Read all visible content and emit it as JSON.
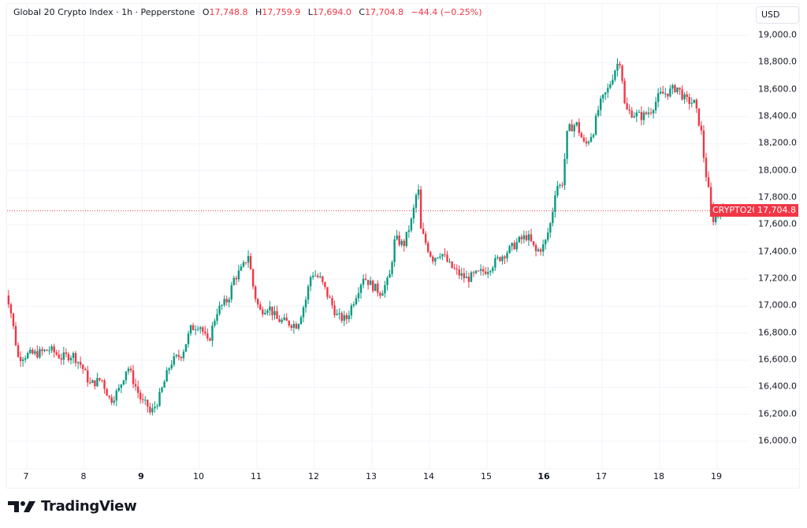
{
  "header": {
    "symbol_title": "Global 20 Crypto Index · 1h · Pepperstone",
    "ohlc": {
      "open_label": "O",
      "open": "17,748.8",
      "high_label": "H",
      "high": "17,759.9",
      "low_label": "L",
      "low": "17,694.0",
      "close_label": "C",
      "close": "17,704.8",
      "change": "−44.4 (−0.25%)"
    }
  },
  "price_axis": {
    "currency": "USD",
    "ticks": [
      "19,000.0",
      "18,800.0",
      "18,600.0",
      "18,400.0",
      "18,200.0",
      "18,000.0",
      "17,800.0",
      "17,600.0",
      "17,400.0",
      "17,200.0",
      "17,000.0",
      "16,800.0",
      "16,600.0",
      "16,400.0",
      "16,200.0",
      "16,000.0"
    ]
  },
  "last_price": {
    "symbol": "CRYPTO20",
    "value": "17,704.8"
  },
  "time_axis": {
    "ticks": [
      {
        "label": "7",
        "bold": false
      },
      {
        "label": "8",
        "bold": false
      },
      {
        "label": "9",
        "bold": true
      },
      {
        "label": "10",
        "bold": false
      },
      {
        "label": "11",
        "bold": false
      },
      {
        "label": "12",
        "bold": false
      },
      {
        "label": "13",
        "bold": false
      },
      {
        "label": "14",
        "bold": false
      },
      {
        "label": "15",
        "bold": false
      },
      {
        "label": "16",
        "bold": true
      },
      {
        "label": "17",
        "bold": false
      },
      {
        "label": "18",
        "bold": false
      },
      {
        "label": "19",
        "bold": false
      }
    ]
  },
  "branding": {
    "logo_text": "TradingView"
  },
  "colors": {
    "up": "#089981",
    "down": "#F23645",
    "grid": "#f0f3fa",
    "last_price_line": "#F23645"
  },
  "chart_data": {
    "type": "candlestick",
    "title": "Global 20 Crypto Index · 1h · Pepperstone",
    "timeframe": "1h",
    "xlabel": "",
    "ylabel": "USD",
    "ylim": [
      15800,
      19100
    ],
    "grid": true,
    "x_ticks": [
      "7",
      "8",
      "9",
      "10",
      "11",
      "12",
      "13",
      "14",
      "15",
      "16",
      "17",
      "18",
      "19"
    ],
    "y_ticks": [
      16000,
      16200,
      16400,
      16600,
      16800,
      17000,
      17200,
      17400,
      17600,
      17800,
      18000,
      18200,
      18400,
      18600,
      18800,
      19000
    ],
    "last_close": 17704.8,
    "last_ohlc": {
      "open": 17748.8,
      "high": 17759.9,
      "low": 17694.0,
      "close": 17704.8,
      "change": -44.4,
      "change_pct": -0.25
    },
    "close_path": [
      [
        6.6,
        17150
      ],
      [
        6.7,
        17020
      ],
      [
        6.8,
        16750
      ],
      [
        6.85,
        16620
      ],
      [
        7.0,
        16640
      ],
      [
        7.2,
        16650
      ],
      [
        7.4,
        16680
      ],
      [
        7.6,
        16620
      ],
      [
        7.8,
        16640
      ],
      [
        7.95,
        16560
      ],
      [
        8.1,
        16420
      ],
      [
        8.3,
        16460
      ],
      [
        8.45,
        16300
      ],
      [
        8.6,
        16380
      ],
      [
        8.75,
        16560
      ],
      [
        8.85,
        16450
      ],
      [
        9.0,
        16290
      ],
      [
        9.1,
        16260
      ],
      [
        9.15,
        16200
      ],
      [
        9.3,
        16320
      ],
      [
        9.5,
        16580
      ],
      [
        9.7,
        16650
      ],
      [
        9.85,
        16830
      ],
      [
        10.0,
        16870
      ],
      [
        10.15,
        16720
      ],
      [
        10.3,
        16960
      ],
      [
        10.5,
        17050
      ],
      [
        10.6,
        17200
      ],
      [
        10.75,
        17280
      ],
      [
        10.85,
        17380
      ],
      [
        10.95,
        17100
      ],
      [
        11.05,
        16960
      ],
      [
        11.2,
        17000
      ],
      [
        11.35,
        16900
      ],
      [
        11.5,
        16880
      ],
      [
        11.7,
        16860
      ],
      [
        11.85,
        17050
      ],
      [
        11.95,
        17250
      ],
      [
        12.1,
        17200
      ],
      [
        12.25,
        17060
      ],
      [
        12.4,
        16920
      ],
      [
        12.55,
        16900
      ],
      [
        12.7,
        17060
      ],
      [
        12.85,
        17220
      ],
      [
        13.0,
        17150
      ],
      [
        13.15,
        17100
      ],
      [
        13.3,
        17200
      ],
      [
        13.4,
        17500
      ],
      [
        13.55,
        17450
      ],
      [
        13.7,
        17650
      ],
      [
        13.8,
        17900
      ],
      [
        13.85,
        17560
      ],
      [
        13.95,
        17450
      ],
      [
        14.05,
        17350
      ],
      [
        14.2,
        17400
      ],
      [
        14.35,
        17300
      ],
      [
        14.5,
        17240
      ],
      [
        14.65,
        17200
      ],
      [
        14.8,
        17230
      ],
      [
        15.0,
        17270
      ],
      [
        15.2,
        17350
      ],
      [
        15.4,
        17420
      ],
      [
        15.55,
        17480
      ],
      [
        15.7,
        17520
      ],
      [
        15.85,
        17400
      ],
      [
        16.0,
        17450
      ],
      [
        16.12,
        17640
      ],
      [
        16.2,
        17900
      ],
      [
        16.3,
        17880
      ],
      [
        16.4,
        18300
      ],
      [
        16.55,
        18350
      ],
      [
        16.7,
        18180
      ],
      [
        16.85,
        18300
      ],
      [
        16.95,
        18480
      ],
      [
        17.1,
        18600
      ],
      [
        17.25,
        18780
      ],
      [
        17.32,
        18820
      ],
      [
        17.4,
        18450
      ],
      [
        17.55,
        18420
      ],
      [
        17.7,
        18400
      ],
      [
        17.85,
        18450
      ],
      [
        18.0,
        18560
      ],
      [
        18.15,
        18580
      ],
      [
        18.3,
        18620
      ],
      [
        18.45,
        18520
      ],
      [
        18.6,
        18500
      ],
      [
        18.72,
        18300
      ],
      [
        18.78,
        18050
      ],
      [
        18.85,
        17850
      ],
      [
        18.92,
        17640
      ],
      [
        19.0,
        17670
      ],
      [
        19.05,
        17720
      ],
      [
        19.12,
        17705
      ]
    ]
  }
}
